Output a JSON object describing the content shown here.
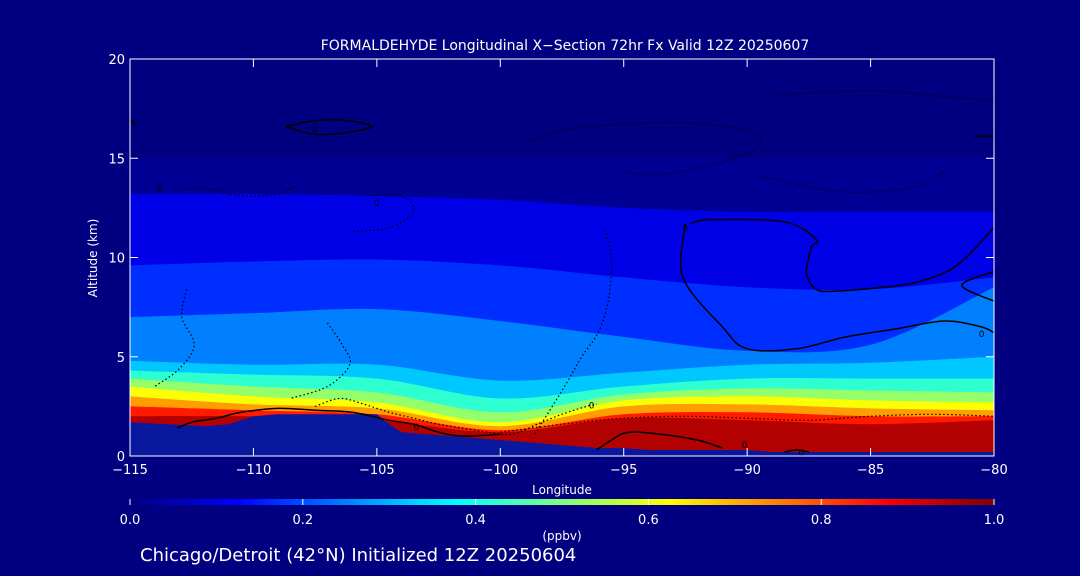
{
  "chart_data": {
    "type": "heatmap",
    "title": "FORMALDEHYDE Longitudinal X−Section 72hr  Fx Valid 12Z 20250607",
    "xlabel": "Longitude",
    "ylabel": "Altitude (km)",
    "xlim": [
      -115,
      -80
    ],
    "ylim": [
      0,
      20
    ],
    "x_ticks": [
      -115,
      -110,
      -105,
      -100,
      -95,
      -90,
      -85,
      -80
    ],
    "x_tick_labels": [
      "−115",
      "−110",
      "−105",
      "−100",
      "−95",
      "−90",
      "−85",
      "−80"
    ],
    "y_ticks": [
      0,
      5,
      10,
      15,
      20
    ],
    "y_tick_labels": [
      "0",
      "5",
      "10",
      "15",
      "20"
    ],
    "grid": false,
    "colorbar": {
      "label": "(ppbv)",
      "range": [
        0.0,
        1.0
      ],
      "ticks": [
        0.0,
        0.2,
        0.4,
        0.6,
        0.8,
        1.0
      ],
      "tick_labels": [
        "0.0",
        "0.2",
        "0.4",
        "0.6",
        "0.8",
        "1.0"
      ],
      "colormap": "jet"
    },
    "layers": [
      {
        "top_km": [
          15.0,
          15.0,
          15.0,
          15.0,
          15.0,
          15.0,
          15.0,
          15.0
        ],
        "value": 0.02
      },
      {
        "top_km": [
          13.2,
          13.2,
          13.1,
          12.9,
          12.5,
          12.3,
          12.3,
          12.3
        ],
        "value": 0.1
      },
      {
        "top_km": [
          9.6,
          9.8,
          9.9,
          9.6,
          9.0,
          8.5,
          8.4,
          9.0
        ],
        "value": 0.17
      },
      {
        "top_km": [
          7.0,
          7.2,
          7.4,
          6.8,
          6.0,
          5.3,
          5.6,
          8.5
        ],
        "value": 0.25
      },
      {
        "top_km": [
          4.8,
          4.6,
          4.6,
          3.8,
          4.2,
          4.6,
          4.7,
          5.0
        ],
        "value": 0.32
      },
      {
        "top_km": [
          4.3,
          4.1,
          3.9,
          2.9,
          3.5,
          3.9,
          3.9,
          3.9
        ],
        "value": 0.42
      },
      {
        "top_km": [
          3.9,
          3.5,
          3.2,
          2.2,
          3.1,
          3.4,
          3.3,
          3.2
        ],
        "value": 0.52
      },
      {
        "top_km": [
          3.5,
          3.0,
          2.7,
          1.7,
          2.8,
          3.0,
          2.8,
          2.7
        ],
        "value": 0.62
      },
      {
        "top_km": [
          3.0,
          2.6,
          2.4,
          1.5,
          2.5,
          2.6,
          2.4,
          2.3
        ],
        "value": 0.72
      },
      {
        "top_km": [
          2.5,
          2.3,
          2.1,
          1.3,
          2.1,
          2.2,
          2.0,
          2.0
        ],
        "value": 0.85
      },
      {
        "top_km": [
          2.0,
          2.0,
          1.8,
          1.2,
          1.9,
          1.8,
          1.6,
          1.8
        ],
        "value": 0.95
      }
    ],
    "terrain": {
      "x": [
        -115,
        -113.5,
        -112,
        -111,
        -110,
        -109,
        -108,
        -107,
        -106,
        -105,
        -104.5,
        -104,
        -103,
        -102,
        -101,
        -100,
        -99,
        -98,
        -97,
        -96,
        -95,
        -94,
        -93,
        -92,
        -91,
        -90,
        -89,
        -88,
        -87,
        -86,
        -85,
        -84,
        -83,
        -82,
        -81,
        -80
      ],
      "top_km": [
        1.7,
        1.6,
        1.5,
        1.6,
        2.0,
        2.1,
        2.1,
        2.1,
        2.1,
        2.1,
        1.6,
        1.2,
        1.1,
        1.0,
        0.9,
        0.8,
        0.7,
        0.6,
        0.5,
        0.4,
        0.4,
        0.3,
        0.3,
        0.3,
        0.3,
        0.3,
        0.2,
        0.2,
        0.2,
        0.2,
        0.2,
        0.2,
        0.2,
        0.2,
        0.2,
        0.2
      ]
    },
    "contours": [
      {
        "style": "solid",
        "points": [
          [
            -113.1,
            1.4
          ],
          [
            -112.5,
            1.7
          ],
          [
            -111.5,
            1.9
          ],
          [
            -110.5,
            2.2
          ],
          [
            -109,
            2.4
          ],
          [
            -107.5,
            2.3
          ],
          [
            -106,
            2.2
          ],
          [
            -104.5,
            1.8
          ],
          [
            -103.5,
            1.6
          ],
          [
            -102.5,
            1.2
          ],
          [
            -101.5,
            1.0
          ],
          [
            -100,
            1.1
          ]
        ]
      },
      {
        "style": "dotted",
        "points": [
          [
            -107.5,
            2.5
          ],
          [
            -106.5,
            2.9
          ],
          [
            -105.5,
            2.6
          ],
          [
            -104.5,
            2.2
          ],
          [
            -103.5,
            1.9
          ],
          [
            -102.5,
            1.6
          ],
          [
            -101.5,
            1.4
          ],
          [
            -100.5,
            1.2
          ],
          [
            -99.5,
            1.1
          ],
          [
            -98.5,
            1.6
          ],
          [
            -97.5,
            2.1
          ],
          [
            -96.5,
            2.5
          ],
          [
            -96.1,
            2.6
          ]
        ]
      },
      {
        "style": "solid",
        "points": [
          [
            -96.1,
            0.3
          ],
          [
            -95.5,
            0.8
          ],
          [
            -94.8,
            1.2
          ],
          [
            -93.5,
            1.1
          ],
          [
            -92,
            0.8
          ],
          [
            -91,
            0.4
          ]
        ]
      },
      {
        "style": "solid",
        "points": [
          [
            -88.5,
            0.2
          ],
          [
            -88,
            0.3
          ],
          [
            -87.5,
            0.2
          ]
        ]
      },
      {
        "style": "dotted",
        "points": [
          [
            -100,
            1.2
          ],
          [
            -97.5,
            1.6
          ],
          [
            -95,
            1.9
          ],
          [
            -92.5,
            2.0
          ],
          [
            -90,
            1.9
          ],
          [
            -87.5,
            1.8
          ],
          [
            -85,
            2.0
          ],
          [
            -82.5,
            2.1
          ],
          [
            -80,
            2.0
          ]
        ]
      },
      {
        "style": "dotted",
        "points": [
          [
            -98.6,
            1.1
          ],
          [
            -97.4,
            3.5
          ],
          [
            -96.7,
            5.0
          ],
          [
            -96,
            6.3
          ],
          [
            -95.6,
            8.0
          ],
          [
            -95.5,
            10.0
          ],
          [
            -95.8,
            11.5
          ]
        ]
      },
      {
        "style": "solid",
        "points": [
          [
            -92.3,
            11.7
          ],
          [
            -91.5,
            11.9
          ],
          [
            -88.5,
            11.8
          ],
          [
            -87.2,
            10.9
          ],
          [
            -87.4,
            10.5
          ],
          [
            -87.6,
            9.2
          ],
          [
            -87.2,
            8.4
          ],
          [
            -86.5,
            8.3
          ],
          [
            -84.5,
            8.5
          ],
          [
            -83,
            8.8
          ],
          [
            -81.5,
            9.6
          ],
          [
            -80,
            11.5
          ]
        ]
      },
      {
        "style": "solid",
        "points": [
          [
            -92.5,
            11.7
          ],
          [
            -92.6,
            9.0
          ],
          [
            -91,
            6.5
          ],
          [
            -90,
            5.4
          ],
          [
            -88,
            5.4
          ],
          [
            -86,
            6.0
          ],
          [
            -84,
            6.4
          ],
          [
            -82,
            6.8
          ],
          [
            -80.5,
            6.5
          ],
          [
            -80,
            6.2
          ]
        ]
      },
      {
        "style": "solid",
        "points": [
          [
            -80,
            9.3
          ],
          [
            -81.3,
            8.6
          ],
          [
            -80,
            7.8
          ]
        ]
      },
      {
        "style": "solid",
        "points": [
          [
            -108.7,
            16.6
          ],
          [
            -107.5,
            16.9
          ],
          [
            -106.2,
            16.9
          ],
          [
            -105.2,
            16.6
          ],
          [
            -106.2,
            16.3
          ],
          [
            -107.5,
            16.2
          ],
          [
            -108.7,
            16.6
          ]
        ]
      },
      {
        "style": "solid",
        "points": [
          [
            -115,
            16.7
          ],
          [
            -114.9,
            16.9
          ],
          [
            -114.8,
            16.6
          ]
        ]
      },
      {
        "style": "solid",
        "points": [
          [
            -80.8,
            16.1
          ],
          [
            -80,
            16.1
          ]
        ]
      },
      {
        "style": "dotted",
        "points": [
          [
            -113,
            13.4
          ],
          [
            -112,
            13.5
          ],
          [
            -110.5,
            13.1
          ],
          [
            -109,
            13.2
          ],
          [
            -108.3,
            13.6
          ]
        ]
      },
      {
        "style": "dotted",
        "points": [
          [
            -105.5,
            13.1
          ],
          [
            -104,
            13.1
          ],
          [
            -103.5,
            12.3
          ],
          [
            -104.5,
            11.5
          ],
          [
            -106,
            11.3
          ]
        ]
      },
      {
        "style": "dotted",
        "points": [
          [
            -99,
            15.8
          ],
          [
            -97,
            16.5
          ],
          [
            -93,
            16.8
          ],
          [
            -90,
            16.4
          ],
          [
            -89.5,
            15.6
          ],
          [
            -91,
            14.8
          ],
          [
            -93.5,
            14.2
          ],
          [
            -95,
            14.3
          ]
        ]
      },
      {
        "style": "dotted",
        "points": [
          [
            -89.5,
            14.1
          ],
          [
            -86,
            13.3
          ],
          [
            -83,
            13.6
          ],
          [
            -82,
            14.4
          ]
        ]
      },
      {
        "style": "dotted",
        "points": [
          [
            -88.8,
            18.2
          ],
          [
            -85,
            18.4
          ],
          [
            -82,
            18.1
          ],
          [
            -80,
            17.9
          ]
        ]
      },
      {
        "style": "dotted",
        "points": [
          [
            -107,
            6.7
          ],
          [
            -106.4,
            5.6
          ],
          [
            -106.1,
            4.6
          ],
          [
            -107,
            3.5
          ],
          [
            -108.5,
            2.9
          ]
        ]
      },
      {
        "style": "dotted",
        "points": [
          [
            -112.7,
            8.4
          ],
          [
            -112.9,
            7.0
          ],
          [
            -112.4,
            5.6
          ],
          [
            -113,
            4.4
          ],
          [
            -114,
            3.5
          ]
        ]
      }
    ],
    "contour_labels": [
      {
        "text": "0",
        "x": -107.5,
        "y": 16.5
      },
      {
        "text": "0",
        "x": -113.8,
        "y": 13.5
      },
      {
        "text": "0",
        "x": -105,
        "y": 12.8
      },
      {
        "text": "0",
        "x": -92.5,
        "y": 11.5
      },
      {
        "text": "0",
        "x": -80.5,
        "y": 6.2
      },
      {
        "text": "0",
        "x": -103.4,
        "y": 1.5
      },
      {
        "text": "0",
        "x": -90.1,
        "y": 0.6
      },
      {
        "text": "0",
        "x": -87.8,
        "y": 0.2
      },
      {
        "text": "0",
        "x": -96.3,
        "y": 2.6
      }
    ]
  },
  "subtitle": "Chicago/Detroit (42°N) Initialized 12Z 20250604",
  "colors": {
    "background": "#000080",
    "text": "#ffffff",
    "contour": "#000000",
    "terrain": "#0a18a0"
  }
}
